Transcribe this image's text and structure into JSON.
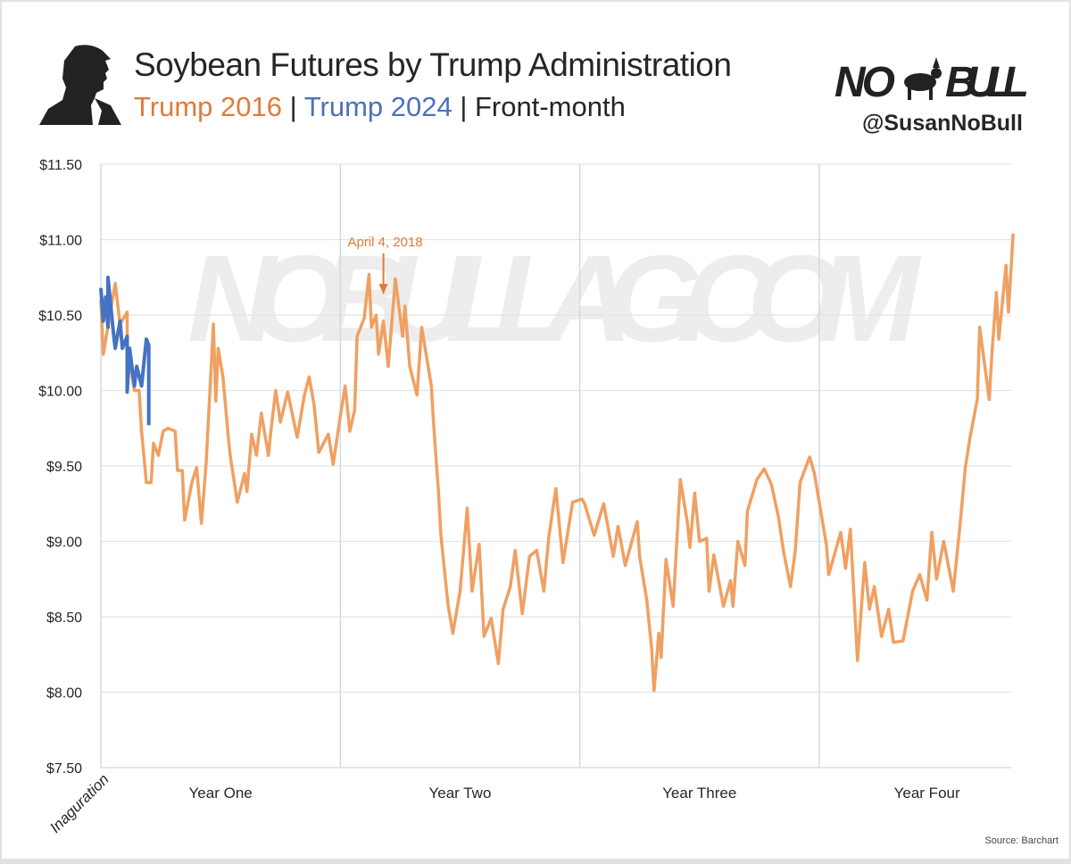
{
  "header": {
    "title": "Soybean Futures by Trump Administration",
    "subtitle_parts": [
      "Trump 2016",
      " | ",
      "Trump 2024",
      " | Front-month"
    ],
    "logo_text": "NO BULL",
    "handle": "@SusanNoBull",
    "watermark": "NOBULLAG.COM",
    "source": "Source: Barchart"
  },
  "colors": {
    "trump_2016": "#f0a062",
    "trump_2024": "#4472c4",
    "annotation": "#e07b39",
    "year_divider": "#c9d6ea",
    "grid": "#e4e4e4"
  },
  "chart_data": {
    "type": "line",
    "title": "Soybean Futures by Trump Administration",
    "xlabel": "",
    "ylabel": "",
    "x_units": "years since inauguration",
    "xlim": [
      0,
      3.8
    ],
    "ylim": [
      7.5,
      11.5
    ],
    "y_ticks": [
      "$11.50",
      "$11.00",
      "$10.50",
      "$10.00",
      "$9.50",
      "$9.00",
      "$8.50",
      "$8.00",
      "$7.50"
    ],
    "y_tick_values": [
      11.5,
      11.0,
      10.5,
      10.0,
      9.5,
      9.0,
      8.5,
      8.0,
      7.5
    ],
    "x_categories": [
      {
        "label": "Inaguration",
        "at": 0
      },
      {
        "label": "Year One",
        "at": 0.5
      },
      {
        "label": "Year Two",
        "at": 1.5
      },
      {
        "label": "Year Three",
        "at": 2.5
      },
      {
        "label": "Year Four",
        "at": 3.45
      }
    ],
    "year_dividers": [
      0,
      1,
      2,
      3
    ],
    "grid": true,
    "annotation": {
      "label": "April 4, 2018",
      "x": 1.18,
      "y": 10.5
    },
    "series": [
      {
        "name": "Trump 2016",
        "color": "#f0a062",
        "points": [
          [
            0.0,
            10.6
          ],
          [
            0.01,
            10.24
          ],
          [
            0.06,
            10.71
          ],
          [
            0.08,
            10.44
          ],
          [
            0.11,
            10.52
          ],
          [
            0.11,
            10.28
          ],
          [
            0.14,
            10.0
          ],
          [
            0.16,
            10.0
          ],
          [
            0.17,
            9.73
          ],
          [
            0.19,
            9.39
          ],
          [
            0.21,
            9.39
          ],
          [
            0.22,
            9.65
          ],
          [
            0.24,
            9.57
          ],
          [
            0.26,
            9.73
          ],
          [
            0.28,
            9.75
          ],
          [
            0.31,
            9.73
          ],
          [
            0.32,
            9.47
          ],
          [
            0.34,
            9.47
          ],
          [
            0.35,
            9.14
          ],
          [
            0.38,
            9.39
          ],
          [
            0.4,
            9.49
          ],
          [
            0.42,
            9.12
          ],
          [
            0.44,
            9.53
          ],
          [
            0.47,
            10.44
          ],
          [
            0.48,
            9.93
          ],
          [
            0.49,
            10.28
          ],
          [
            0.51,
            10.09
          ],
          [
            0.53,
            9.73
          ],
          [
            0.54,
            9.57
          ],
          [
            0.57,
            9.26
          ],
          [
            0.6,
            9.45
          ],
          [
            0.61,
            9.33
          ],
          [
            0.63,
            9.71
          ],
          [
            0.65,
            9.57
          ],
          [
            0.67,
            9.85
          ],
          [
            0.7,
            9.57
          ],
          [
            0.71,
            9.73
          ],
          [
            0.73,
            10.0
          ],
          [
            0.75,
            9.79
          ],
          [
            0.78,
            9.99
          ],
          [
            0.82,
            9.69
          ],
          [
            0.85,
            9.97
          ],
          [
            0.87,
            10.09
          ],
          [
            0.89,
            9.91
          ],
          [
            0.91,
            9.59
          ],
          [
            0.95,
            9.71
          ],
          [
            0.97,
            9.51
          ],
          [
            1.0,
            9.83
          ],
          [
            1.02,
            10.03
          ],
          [
            1.04,
            9.73
          ],
          [
            1.06,
            9.87
          ],
          [
            1.07,
            10.36
          ],
          [
            1.1,
            10.48
          ],
          [
            1.12,
            10.77
          ],
          [
            1.13,
            10.42
          ],
          [
            1.15,
            10.5
          ],
          [
            1.16,
            10.24
          ],
          [
            1.18,
            10.46
          ],
          [
            1.2,
            10.16
          ],
          [
            1.23,
            10.74
          ],
          [
            1.26,
            10.36
          ],
          [
            1.27,
            10.56
          ],
          [
            1.29,
            10.16
          ],
          [
            1.32,
            9.97
          ],
          [
            1.34,
            10.42
          ],
          [
            1.38,
            10.03
          ],
          [
            1.39,
            9.77
          ],
          [
            1.41,
            9.33
          ],
          [
            1.42,
            9.04
          ],
          [
            1.45,
            8.58
          ],
          [
            1.47,
            8.39
          ],
          [
            1.5,
            8.67
          ],
          [
            1.53,
            9.22
          ],
          [
            1.55,
            8.67
          ],
          [
            1.58,
            8.98
          ],
          [
            1.6,
            8.37
          ],
          [
            1.63,
            8.49
          ],
          [
            1.66,
            8.19
          ],
          [
            1.68,
            8.55
          ],
          [
            1.71,
            8.7
          ],
          [
            1.73,
            8.94
          ],
          [
            1.76,
            8.52
          ],
          [
            1.79,
            8.9
          ],
          [
            1.82,
            8.94
          ],
          [
            1.85,
            8.67
          ],
          [
            1.87,
            9.02
          ],
          [
            1.9,
            9.35
          ],
          [
            1.93,
            8.86
          ],
          [
            1.97,
            9.26
          ],
          [
            2.01,
            9.28
          ],
          [
            2.02,
            9.25
          ],
          [
            2.06,
            9.04
          ],
          [
            2.1,
            9.25
          ],
          [
            2.14,
            8.9
          ],
          [
            2.16,
            9.1
          ],
          [
            2.19,
            8.84
          ],
          [
            2.24,
            9.13
          ],
          [
            2.25,
            8.9
          ],
          [
            2.28,
            8.61
          ],
          [
            2.3,
            8.29
          ],
          [
            2.31,
            8.01
          ],
          [
            2.33,
            8.39
          ],
          [
            2.34,
            8.23
          ],
          [
            2.36,
            8.88
          ],
          [
            2.39,
            8.57
          ],
          [
            2.42,
            9.41
          ],
          [
            2.45,
            9.12
          ],
          [
            2.46,
            8.96
          ],
          [
            2.48,
            9.32
          ],
          [
            2.5,
            9.0
          ],
          [
            2.53,
            9.02
          ],
          [
            2.54,
            8.67
          ],
          [
            2.56,
            8.91
          ],
          [
            2.6,
            8.57
          ],
          [
            2.63,
            8.74
          ],
          [
            2.64,
            8.57
          ],
          [
            2.66,
            9.0
          ],
          [
            2.69,
            8.84
          ],
          [
            2.7,
            9.2
          ],
          [
            2.74,
            9.41
          ],
          [
            2.77,
            9.48
          ],
          [
            2.8,
            9.38
          ],
          [
            2.83,
            9.16
          ],
          [
            2.85,
            8.94
          ],
          [
            2.88,
            8.7
          ],
          [
            2.9,
            8.94
          ],
          [
            2.92,
            9.39
          ],
          [
            2.96,
            9.56
          ],
          [
            2.98,
            9.45
          ],
          [
            3.03,
            8.98
          ],
          [
            3.04,
            8.78
          ],
          [
            3.09,
            9.06
          ],
          [
            3.11,
            8.82
          ],
          [
            3.13,
            9.08
          ],
          [
            3.16,
            8.21
          ],
          [
            3.19,
            8.86
          ],
          [
            3.21,
            8.55
          ],
          [
            3.23,
            8.7
          ],
          [
            3.26,
            8.37
          ],
          [
            3.29,
            8.55
          ],
          [
            3.31,
            8.33
          ],
          [
            3.35,
            8.34
          ],
          [
            3.39,
            8.67
          ],
          [
            3.42,
            8.78
          ],
          [
            3.45,
            8.61
          ],
          [
            3.47,
            9.06
          ],
          [
            3.49,
            8.75
          ],
          [
            3.52,
            9.0
          ],
          [
            3.56,
            8.67
          ],
          [
            3.59,
            9.14
          ],
          [
            3.61,
            9.49
          ],
          [
            3.63,
            9.69
          ],
          [
            3.66,
            9.94
          ],
          [
            3.67,
            10.42
          ],
          [
            3.71,
            9.94
          ],
          [
            3.72,
            10.22
          ],
          [
            3.74,
            10.65
          ],
          [
            3.75,
            10.34
          ],
          [
            3.78,
            10.83
          ],
          [
            3.79,
            10.52
          ],
          [
            3.81,
            11.04
          ]
        ]
      },
      {
        "name": "Trump 2024",
        "color": "#4472c4",
        "points": [
          [
            0.0,
            10.68
          ],
          [
            0.01,
            10.46
          ],
          [
            0.02,
            10.62
          ],
          [
            0.03,
            10.42
          ],
          [
            0.03,
            10.75
          ],
          [
            0.05,
            10.42
          ],
          [
            0.06,
            10.28
          ],
          [
            0.08,
            10.46
          ],
          [
            0.09,
            10.28
          ],
          [
            0.11,
            10.36
          ],
          [
            0.11,
            9.99
          ],
          [
            0.12,
            10.28
          ],
          [
            0.14,
            10.03
          ],
          [
            0.15,
            10.16
          ],
          [
            0.17,
            10.03
          ],
          [
            0.19,
            10.34
          ],
          [
            0.2,
            10.3
          ],
          [
            0.2,
            9.77
          ]
        ]
      }
    ]
  }
}
